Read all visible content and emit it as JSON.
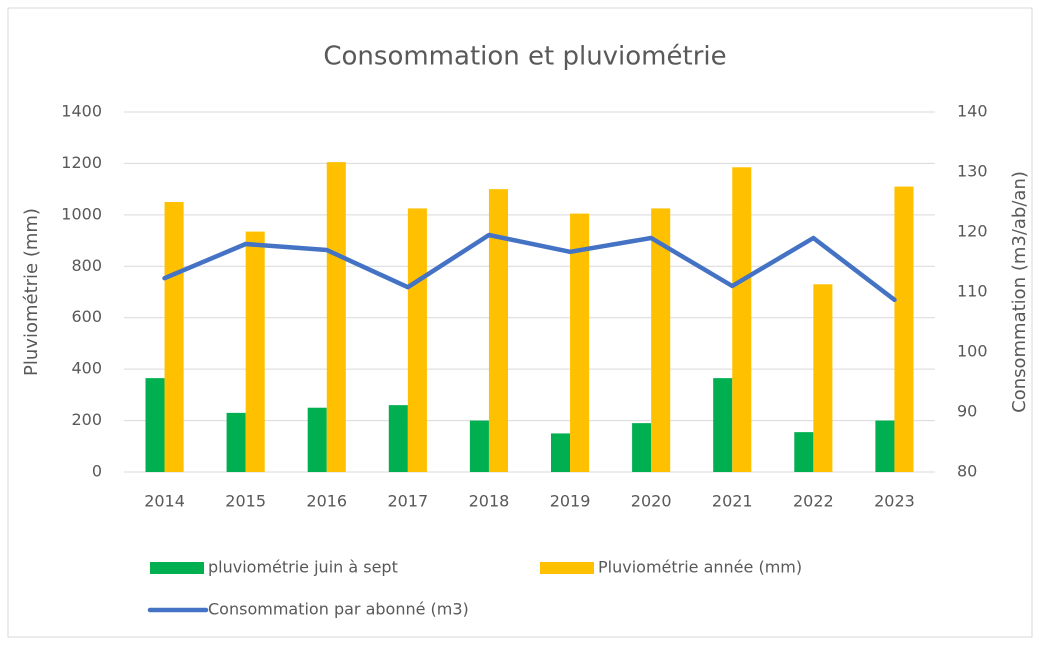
{
  "chart_data": {
    "type": "bar",
    "title": "Consommation et pluviométrie",
    "y_label": "Pluviométrie (mm)",
    "y2_label": "Consommation (m3/ab/an)",
    "categories": [
      "2014",
      "2015",
      "2016",
      "2017",
      "2018",
      "2019",
      "2020",
      "2021",
      "2022",
      "2023"
    ],
    "series": [
      {
        "name": "pluviométrie juin à sept",
        "type": "bar",
        "color": "#00b050",
        "values": [
          365,
          230,
          250,
          260,
          200,
          150,
          190,
          365,
          155,
          200
        ]
      },
      {
        "name": "Pluviométrie année (mm)",
        "type": "bar",
        "color": "#ffc000",
        "values": [
          1050,
          935,
          1205,
          1025,
          1100,
          1005,
          1025,
          1185,
          730,
          1110
        ]
      },
      {
        "name": "Consommation par abonné (m3)",
        "type": "line",
        "axis": "y2",
        "color": "#4472c4",
        "values": [
          112.3,
          118,
          117,
          110.8,
          119.5,
          116.7,
          119,
          111,
          119,
          108.7
        ]
      }
    ],
    "ylim": [
      0,
      1400
    ],
    "yticks": [
      0,
      200,
      400,
      600,
      800,
      1000,
      1200,
      1400
    ],
    "y2lim": [
      80,
      140
    ],
    "y2ticks": [
      80,
      90,
      100,
      110,
      120,
      130,
      140
    ],
    "grid": true
  }
}
